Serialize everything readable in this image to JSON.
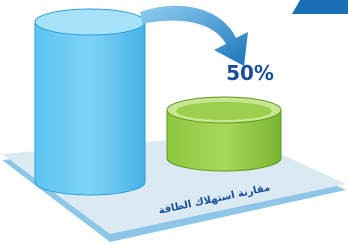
{
  "annotation": "50%",
  "caption": "مقارنة استهلاك الطاقة"
}
